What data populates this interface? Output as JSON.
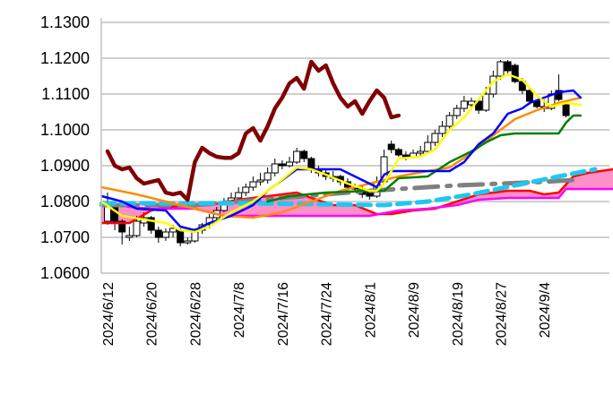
{
  "chart_data": {
    "type": "candlestick-ichimoku",
    "title": "",
    "xlabel": "",
    "ylabel": "",
    "ylim": [
      1.06,
      1.13
    ],
    "grid": true,
    "legend": "none",
    "y_ticks": [
      "1.0600",
      "1.0700",
      "1.0800",
      "1.0900",
      "1.1000",
      "1.1100",
      "1.1200",
      "1.1300"
    ],
    "x_ticks": [
      {
        "index": 0,
        "label": "2024/6/12"
      },
      {
        "index": 6,
        "label": "2024/6/20"
      },
      {
        "index": 12,
        "label": "2024/6/28"
      },
      {
        "index": 18,
        "label": "2024/7/8"
      },
      {
        "index": 24,
        "label": "2024/7/16"
      },
      {
        "index": 30,
        "label": "2024/7/24"
      },
      {
        "index": 36,
        "label": "2024/8/1"
      },
      {
        "index": 42,
        "label": "2024/8/9"
      },
      {
        "index": 48,
        "label": "2024/8/19"
      },
      {
        "index": 54,
        "label": "2024/8/27"
      },
      {
        "index": 60,
        "label": "2024/9/4"
      }
    ],
    "x_range": [
      -1,
      69.5
    ],
    "candles": [
      [
        0,
        1.0745,
        1.0825,
        1.0735,
        1.0795
      ],
      [
        1,
        1.079,
        1.08,
        1.072,
        1.0745
      ],
      [
        2,
        1.0745,
        1.075,
        1.068,
        1.0715
      ],
      [
        3,
        1.07,
        1.073,
        1.069,
        1.0705
      ],
      [
        4,
        1.0705,
        1.076,
        1.07,
        1.0745
      ],
      [
        5,
        1.074,
        1.077,
        1.073,
        1.0755
      ],
      [
        6,
        1.0755,
        1.076,
        1.071,
        1.072
      ],
      [
        7,
        1.072,
        1.073,
        1.0685,
        1.07
      ],
      [
        8,
        1.07,
        1.0725,
        1.069,
        1.0715
      ],
      [
        9,
        1.0715,
        1.0735,
        1.07,
        1.0725
      ],
      [
        10,
        1.072,
        1.0725,
        1.0675,
        1.0685
      ],
      [
        11,
        1.0685,
        1.07,
        1.068,
        1.069
      ],
      [
        12,
        1.069,
        1.0725,
        1.0685,
        1.072
      ],
      [
        13,
        1.072,
        1.074,
        1.071,
        1.0735
      ],
      [
        14,
        1.0735,
        1.0765,
        1.0725,
        1.0755
      ],
      [
        15,
        1.0755,
        1.0785,
        1.0745,
        1.0775
      ],
      [
        16,
        1.0775,
        1.081,
        1.077,
        1.08
      ],
      [
        17,
        1.08,
        1.0825,
        1.079,
        1.081
      ],
      [
        18,
        1.081,
        1.084,
        1.08,
        1.0825
      ],
      [
        19,
        1.0825,
        1.085,
        1.0815,
        1.084
      ],
      [
        20,
        1.084,
        1.087,
        1.083,
        1.0855
      ],
      [
        21,
        1.0855,
        1.088,
        1.0845,
        1.086
      ],
      [
        22,
        1.086,
        1.0895,
        1.085,
        1.088
      ],
      [
        23,
        1.088,
        1.092,
        1.087,
        1.0905
      ],
      [
        24,
        1.0905,
        1.0915,
        1.089,
        1.09
      ],
      [
        25,
        1.09,
        1.0925,
        1.0895,
        1.091
      ],
      [
        26,
        1.091,
        1.095,
        1.0905,
        1.094
      ],
      [
        27,
        1.094,
        1.0945,
        1.091,
        1.092
      ],
      [
        28,
        1.092,
        1.0925,
        1.088,
        1.089
      ],
      [
        29,
        1.089,
        1.09,
        1.087,
        1.088
      ],
      [
        30,
        1.088,
        1.089,
        1.086,
        1.087
      ],
      [
        31,
        1.087,
        1.0885,
        1.0855,
        1.0865
      ],
      [
        32,
        1.087,
        1.0875,
        1.0845,
        1.0855
      ],
      [
        33,
        1.0855,
        1.0865,
        1.083,
        1.084
      ],
      [
        34,
        1.084,
        1.085,
        1.0825,
        1.0835
      ],
      [
        35,
        1.0835,
        1.0845,
        1.081,
        1.082
      ],
      [
        36,
        1.0825,
        1.083,
        1.0805,
        1.0815
      ],
      [
        37,
        1.0815,
        1.087,
        1.081,
        1.0855
      ],
      [
        38,
        1.0855,
        1.0945,
        1.085,
        1.0925
      ],
      [
        39,
        1.096,
        1.097,
        1.0935,
        1.0945
      ],
      [
        40,
        1.0945,
        1.095,
        1.0925,
        1.093
      ],
      [
        41,
        1.093,
        1.094,
        1.0915,
        1.0925
      ],
      [
        42,
        1.0925,
        1.0945,
        1.092,
        1.0935
      ],
      [
        43,
        1.0935,
        1.0955,
        1.0925,
        1.094
      ],
      [
        44,
        1.094,
        1.0985,
        1.0935,
        1.0965
      ],
      [
        45,
        1.0965,
        1.1,
        1.0955,
        1.099
      ],
      [
        46,
        1.099,
        1.1025,
        1.098,
        1.101
      ],
      [
        47,
        1.101,
        1.105,
        1.1,
        1.104
      ],
      [
        48,
        1.104,
        1.107,
        1.103,
        1.106
      ],
      [
        49,
        1.106,
        1.1095,
        1.105,
        1.108
      ],
      [
        50,
        1.107,
        1.109,
        1.106,
        1.108
      ],
      [
        51,
        1.108,
        1.1085,
        1.1045,
        1.1055
      ],
      [
        52,
        1.1055,
        1.112,
        1.105,
        1.11
      ],
      [
        53,
        1.11,
        1.1165,
        1.109,
        1.115
      ],
      [
        54,
        1.115,
        1.1195,
        1.114,
        1.119
      ],
      [
        55,
        1.119,
        1.1195,
        1.1155,
        1.1165
      ],
      [
        56,
        1.118,
        1.1185,
        1.113,
        1.1135
      ],
      [
        57,
        1.1135,
        1.1145,
        1.11,
        1.111
      ],
      [
        58,
        1.111,
        1.1115,
        1.107,
        1.108
      ],
      [
        59,
        1.108,
        1.1085,
        1.106,
        1.1065
      ],
      [
        60,
        1.1065,
        1.1085,
        1.105,
        1.106
      ],
      [
        61,
        1.106,
        1.111,
        1.1055,
        1.11
      ],
      [
        62,
        1.111,
        1.1155,
        1.108,
        1.1085
      ],
      [
        63,
        1.107,
        1.1075,
        1.1035,
        1.104
      ]
    ],
    "series": [
      {
        "color": "#ff69b4",
        "kind": "cloud",
        "between": [
          "#ff0000",
          "#ff00ff"
        ]
      },
      {
        "color": "#ff0000",
        "width": 2.5,
        "dash": "",
        "points": [
          [
            -0.8,
            1.074
          ],
          [
            3,
            1.074
          ],
          [
            6,
            1.0775
          ],
          [
            8,
            1.0785
          ],
          [
            14,
            1.079
          ],
          [
            18,
            1.0805
          ],
          [
            22,
            1.0815
          ],
          [
            26,
            1.0825
          ],
          [
            28,
            1.081
          ],
          [
            31,
            1.079
          ],
          [
            34,
            1.079
          ],
          [
            37,
            1.0765
          ],
          [
            39,
            1.0765
          ],
          [
            42,
            1.0775
          ],
          [
            45,
            1.078
          ],
          [
            48,
            1.08
          ],
          [
            51,
            1.082
          ],
          [
            55,
            1.083
          ],
          [
            58,
            1.083
          ],
          [
            60,
            1.082
          ],
          [
            62,
            1.0825
          ],
          [
            64,
            1.087
          ],
          [
            66,
            1.088
          ],
          [
            69.5,
            1.089
          ]
        ]
      },
      {
        "color": "#ff00ff",
        "width": 2.5,
        "dash": "",
        "points": [
          [
            -0.8,
            1.08
          ],
          [
            3,
            1.0785
          ],
          [
            6,
            1.078
          ],
          [
            12,
            1.078
          ],
          [
            16,
            1.076
          ],
          [
            22,
            1.076
          ],
          [
            28,
            1.076
          ],
          [
            36,
            1.076
          ],
          [
            40,
            1.0775
          ],
          [
            44,
            1.078
          ],
          [
            48,
            1.079
          ],
          [
            51,
            1.0805
          ],
          [
            55,
            1.081
          ],
          [
            62,
            1.081
          ],
          [
            63,
            1.0835
          ],
          [
            69.5,
            1.0835
          ]
        ]
      },
      {
        "color": "#808080",
        "width": 5,
        "dash": "26 10 4 10",
        "points": [
          [
            -0.8,
            1.079
          ],
          [
            12,
            1.079
          ],
          [
            24,
            1.081
          ],
          [
            36,
            1.083
          ],
          [
            48,
            1.0845
          ],
          [
            60,
            1.0855
          ],
          [
            64,
            1.086
          ]
        ]
      },
      {
        "color": "#1ec8f0",
        "width": 5,
        "dash": "14 8",
        "points": [
          [
            -0.8,
            1.0795
          ],
          [
            20,
            1.0795
          ],
          [
            38,
            1.079
          ],
          [
            44,
            1.08
          ],
          [
            50,
            1.082
          ],
          [
            56,
            1.0845
          ],
          [
            62,
            1.087
          ],
          [
            67,
            1.089
          ]
        ]
      },
      {
        "color": "#ff8c00",
        "width": 2.5,
        "dash": "",
        "points": [
          [
            -0.8,
            1.084
          ],
          [
            4,
            1.082
          ],
          [
            8,
            1.08
          ],
          [
            12,
            1.078
          ],
          [
            16,
            1.076
          ],
          [
            20,
            1.0755
          ],
          [
            24,
            1.077
          ],
          [
            28,
            1.08
          ],
          [
            32,
            1.083
          ],
          [
            36,
            1.085
          ],
          [
            40,
            1.087
          ],
          [
            44,
            1.0885
          ],
          [
            47,
            1.0895
          ],
          [
            50,
            1.0935
          ],
          [
            53,
            1.0985
          ],
          [
            56,
            1.103
          ],
          [
            59,
            1.1055
          ],
          [
            62,
            1.1075
          ],
          [
            65,
            1.109
          ]
        ]
      },
      {
        "color": "#008000",
        "width": 2.5,
        "dash": "",
        "points": [
          [
            22,
            1.08
          ],
          [
            25,
            1.0815
          ],
          [
            30,
            1.0825
          ],
          [
            36,
            1.083
          ],
          [
            38,
            1.083
          ],
          [
            40,
            1.0865
          ],
          [
            44,
            1.087
          ],
          [
            47,
            1.091
          ],
          [
            50,
            1.094
          ],
          [
            52,
            1.0965
          ],
          [
            54,
            1.0985
          ],
          [
            56,
            1.099
          ],
          [
            62,
            1.099
          ],
          [
            63,
            1.102
          ],
          [
            64,
            1.104
          ],
          [
            65,
            1.104
          ]
        ]
      },
      {
        "color": "#0000ff",
        "width": 2.5,
        "dash": "",
        "points": [
          [
            -0.8,
            1.0815
          ],
          [
            2,
            1.08
          ],
          [
            4,
            1.078
          ],
          [
            8,
            1.0775
          ],
          [
            10,
            1.073
          ],
          [
            12,
            1.072
          ],
          [
            14,
            1.074
          ],
          [
            17,
            1.076
          ],
          [
            20,
            1.079
          ],
          [
            22,
            1.083
          ],
          [
            24,
            1.086
          ],
          [
            26,
            1.089
          ],
          [
            32,
            1.089
          ],
          [
            35,
            1.086
          ],
          [
            37,
            1.084
          ],
          [
            38,
            1.0875
          ],
          [
            39,
            1.0885
          ],
          [
            47,
            1.0885
          ],
          [
            49,
            1.091
          ],
          [
            51,
            1.096
          ],
          [
            53,
            1.099
          ],
          [
            55,
            1.1045
          ],
          [
            57,
            1.106
          ],
          [
            58,
            1.1075
          ],
          [
            60,
            1.109
          ],
          [
            62,
            1.1105
          ],
          [
            64,
            1.111
          ],
          [
            65,
            1.109
          ]
        ]
      },
      {
        "color": "#ffff00",
        "width": 2.5,
        "dash": "",
        "points": [
          [
            -0.8,
            1.08
          ],
          [
            2,
            1.076
          ],
          [
            5,
            1.075
          ],
          [
            8,
            1.074
          ],
          [
            10,
            1.072
          ],
          [
            12,
            1.0715
          ],
          [
            14,
            1.073
          ],
          [
            17,
            1.077
          ],
          [
            20,
            1.08
          ],
          [
            23,
            1.0845
          ],
          [
            26,
            1.0895
          ],
          [
            28,
            1.089
          ],
          [
            30,
            1.0875
          ],
          [
            33,
            1.085
          ],
          [
            36,
            1.083
          ],
          [
            37,
            1.083
          ],
          [
            38,
            1.085
          ],
          [
            40,
            1.092
          ],
          [
            43,
            1.0925
          ],
          [
            45,
            1.0945
          ],
          [
            47,
            1.1
          ],
          [
            49,
            1.1035
          ],
          [
            51,
            1.1085
          ],
          [
            53,
            1.1135
          ],
          [
            55,
            1.1155
          ],
          [
            57,
            1.114
          ],
          [
            59,
            1.1095
          ],
          [
            61,
            1.1065
          ],
          [
            63,
            1.1075
          ],
          [
            65,
            1.107
          ]
        ]
      },
      {
        "color": "#800000",
        "width": 4.5,
        "dash": "",
        "points": [
          [
            0,
            1.094
          ],
          [
            1,
            1.09
          ],
          [
            2,
            1.089
          ],
          [
            3,
            1.0895
          ],
          [
            4,
            1.0865
          ],
          [
            5,
            1.085
          ],
          [
            6,
            1.0855
          ],
          [
            7,
            1.086
          ],
          [
            8,
            1.0825
          ],
          [
            9,
            1.082
          ],
          [
            10,
            1.0825
          ],
          [
            11,
            1.0805
          ],
          [
            12,
            1.091
          ],
          [
            13,
            1.095
          ],
          [
            14,
            1.0935
          ],
          [
            15,
            1.0925
          ],
          [
            16,
            1.0922
          ],
          [
            17,
            1.0922
          ],
          [
            18,
            1.0935
          ],
          [
            19,
            1.099
          ],
          [
            20,
            1.1005
          ],
          [
            21,
            1.097
          ],
          [
            22,
            1.101
          ],
          [
            23,
            1.106
          ],
          [
            24,
            1.109
          ],
          [
            25,
            1.113
          ],
          [
            26,
            1.1145
          ],
          [
            27,
            1.1115
          ],
          [
            28,
            1.119
          ],
          [
            29,
            1.1165
          ],
          [
            30,
            1.118
          ],
          [
            31,
            1.113
          ],
          [
            32,
            1.109
          ],
          [
            33,
            1.1065
          ],
          [
            34,
            1.108
          ],
          [
            35,
            1.1045
          ],
          [
            36,
            1.108
          ],
          [
            37,
            1.111
          ],
          [
            38,
            1.109
          ],
          [
            39,
            1.1035
          ],
          [
            40,
            1.104
          ]
        ]
      }
    ]
  }
}
